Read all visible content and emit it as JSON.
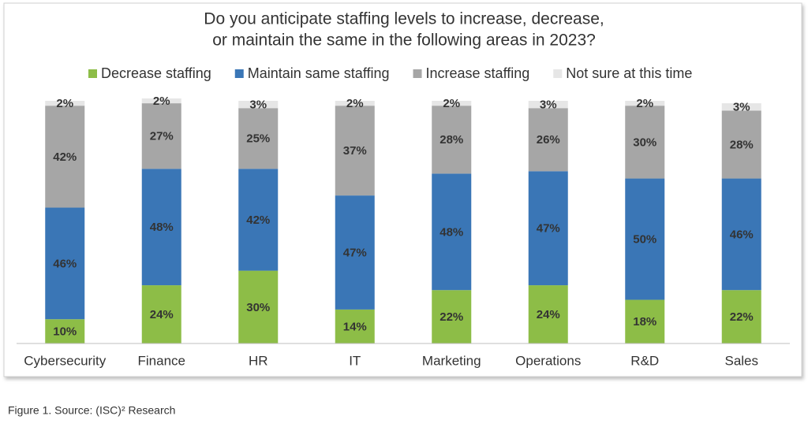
{
  "chart_data": {
    "type": "stacked_bar",
    "title": [
      "Do you anticipate staffing levels to increase, decrease,",
      "or maintain the same in the following areas in 2023?"
    ],
    "categories": [
      "Cybersecurity",
      "Finance",
      "HR",
      "IT",
      "Marketing",
      "Operations",
      "R&D",
      "Sales"
    ],
    "series": [
      {
        "name": "Decrease staffing",
        "color": "#8dbd47",
        "label_color": "#333333",
        "values": [
          10,
          24,
          30,
          14,
          22,
          24,
          18,
          22
        ],
        "value_labels": [
          "10%",
          "24%",
          "30%",
          "14%",
          "22%",
          "24%",
          "18%",
          "22%"
        ]
      },
      {
        "name": "Maintain same staffing",
        "color": "#3a76b6",
        "label_color": "#ffffff",
        "values": [
          46,
          48,
          42,
          47,
          48,
          47,
          50,
          46
        ],
        "value_labels": [
          "46%",
          "48%",
          "42%",
          "47%",
          "48%",
          "47%",
          "50%",
          "46%"
        ]
      },
      {
        "name": "Increase staffing",
        "color": "#a6a6a6",
        "label_color": "#333333",
        "values": [
          42,
          27,
          25,
          37,
          28,
          26,
          30,
          28
        ],
        "value_labels": [
          "42%",
          "27%",
          "25%",
          "37%",
          "28%",
          "26%",
          "30%",
          "28%"
        ]
      },
      {
        "name": "Not sure at this time",
        "color": "#e6e6e6",
        "label_color": "#333333",
        "values": [
          2,
          2,
          3,
          2,
          2,
          3,
          2,
          3
        ],
        "value_labels": [
          "2%",
          "2%",
          "3%",
          "2%",
          "2%",
          "3%",
          "2%",
          "3%"
        ]
      }
    ],
    "ylim": [
      0,
      100
    ],
    "legend": "top"
  },
  "caption": "Figure 1. Source: (ISC)² Research"
}
